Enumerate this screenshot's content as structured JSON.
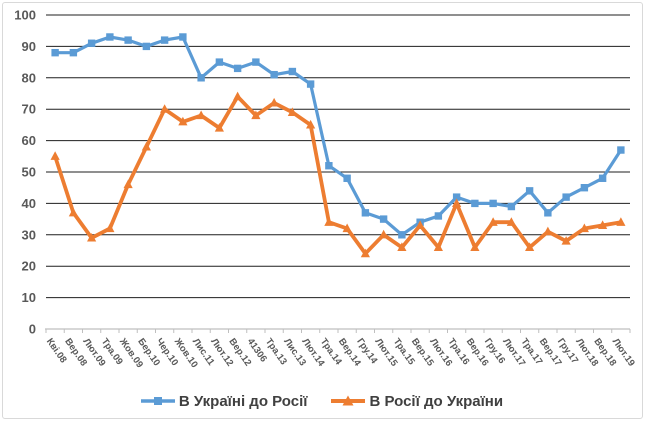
{
  "chart_data": {
    "type": "line",
    "title": "",
    "xlabel": "",
    "ylabel": "",
    "categories": [
      "Кві.08",
      "Вер.08",
      "Лют.09",
      "Тра.09",
      "Жов.09",
      "Бер.10",
      "Чер.10",
      "Жов.10",
      "Лис.11",
      "Лют.12",
      "Вер.12",
      "41306",
      "Тра.13",
      "Лис.13",
      "Лют.14",
      "Тра.14",
      "Вер.14",
      "Гру.14",
      "Лют.15",
      "Тра.15",
      "Вер.15",
      "Лют.16",
      "Тра.16",
      "Вер.16",
      "Гру.16",
      "Лют.17",
      "Тра.17",
      "Вер.17",
      "Гру.17",
      "Лют.18",
      "Вер.18",
      "Лют.19"
    ],
    "series": [
      {
        "name": "В Україні до Росії",
        "color": "#5B9BD5",
        "marker": "square",
        "values": [
          88,
          88,
          91,
          93,
          92,
          90,
          92,
          93,
          80,
          85,
          83,
          85,
          81,
          82,
          78,
          52,
          48,
          37,
          35,
          30,
          34,
          36,
          42,
          40,
          40,
          39,
          44,
          37,
          42,
          45,
          48,
          57
        ]
      },
      {
        "name": "В Росії до України",
        "color": "#ED7D31",
        "marker": "triangle",
        "values": [
          55,
          37,
          29,
          32,
          46,
          58,
          70,
          66,
          68,
          64,
          74,
          68,
          72,
          69,
          65,
          34,
          32,
          24,
          30,
          26,
          33,
          26,
          40,
          26,
          34,
          34,
          26,
          31,
          28,
          32,
          33,
          34
        ]
      }
    ],
    "ylim": [
      0,
      100
    ],
    "ytick_step": 10,
    "ytick_labels": [
      "0",
      "10",
      "20",
      "30",
      "40",
      "50",
      "60",
      "70",
      "80",
      "90",
      "100"
    ],
    "grid": "horizontal-major",
    "legend_position": "bottom-center",
    "styles": {
      "axis_text_color": "#595959",
      "legend_text_color": "#404040",
      "gridline_color": "#1f1f1f",
      "axis_line_color": "#BFBFBF",
      "frame_border_color": "#D9D9D9",
      "background": "#FFFFFF"
    }
  }
}
